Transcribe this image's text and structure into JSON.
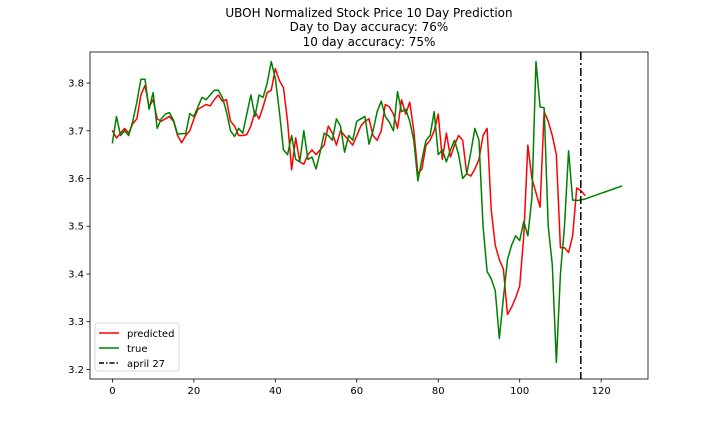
{
  "chart_data": {
    "type": "line",
    "title": [
      "UBOH Normalized Stock Price 10 Day Prediction",
      "Day to Day accuracy: 76%",
      "10 day accuracy: 75%"
    ],
    "xlabel": "",
    "ylabel": "",
    "xlim": [
      -5.5,
      131.5
    ],
    "ylim": [
      3.18,
      3.865
    ],
    "xticks": [
      0,
      20,
      40,
      60,
      80,
      100,
      120
    ],
    "yticks": [
      3.2,
      3.3,
      3.4,
      3.5,
      3.6,
      3.7,
      3.8
    ],
    "ytick_labels": [
      "3.2",
      "3.3",
      "3.4",
      "3.5",
      "3.6",
      "3.7",
      "3.8"
    ],
    "grid": false,
    "legend": "lower-left",
    "vline": {
      "name": "april 27",
      "x": 115,
      "color": "#000000",
      "style": "dashdot"
    },
    "series": [
      {
        "name": "predicted",
        "color": "#ff0000",
        "x": [
          0,
          1,
          2,
          3,
          4,
          5,
          6,
          7,
          8,
          9,
          10,
          11,
          12,
          13,
          14,
          15,
          16,
          17,
          18,
          19,
          20,
          21,
          22,
          23,
          24,
          25,
          26,
          27,
          28,
          29,
          30,
          31,
          32,
          33,
          34,
          35,
          36,
          37,
          38,
          39,
          40,
          41,
          42,
          43,
          44,
          45,
          46,
          47,
          48,
          49,
          50,
          51,
          52,
          53,
          54,
          55,
          56,
          57,
          58,
          59,
          60,
          61,
          62,
          63,
          64,
          65,
          66,
          67,
          68,
          69,
          70,
          71,
          72,
          73,
          74,
          75,
          76,
          77,
          78,
          79,
          80,
          81,
          82,
          83,
          84,
          85,
          86,
          87,
          88,
          89,
          90,
          91,
          92,
          93,
          94,
          95,
          96,
          97,
          98,
          99,
          100,
          101,
          102,
          103,
          104,
          105,
          106,
          107,
          108,
          109,
          110,
          111,
          112,
          113,
          114,
          115,
          116
        ],
        "values": [
          3.7,
          3.685,
          3.695,
          3.705,
          3.695,
          3.715,
          3.725,
          3.775,
          3.795,
          3.75,
          3.765,
          3.725,
          3.72,
          3.725,
          3.73,
          3.72,
          3.69,
          3.675,
          3.69,
          3.7,
          3.725,
          3.745,
          3.75,
          3.755,
          3.752,
          3.765,
          3.775,
          3.762,
          3.765,
          3.72,
          3.71,
          3.69,
          3.69,
          3.692,
          3.71,
          3.74,
          3.725,
          3.75,
          3.78,
          3.785,
          3.83,
          3.805,
          3.79,
          3.72,
          3.618,
          3.685,
          3.635,
          3.63,
          3.65,
          3.66,
          3.65,
          3.66,
          3.67,
          3.71,
          3.695,
          3.67,
          3.7,
          3.69,
          3.68,
          3.67,
          3.69,
          3.71,
          3.72,
          3.725,
          3.69,
          3.68,
          3.7,
          3.755,
          3.75,
          3.735,
          3.705,
          3.765,
          3.735,
          3.76,
          3.7,
          3.61,
          3.62,
          3.67,
          3.68,
          3.7,
          3.735,
          3.64,
          3.695,
          3.645,
          3.67,
          3.69,
          3.68,
          3.61,
          3.605,
          3.62,
          3.64,
          3.69,
          3.705,
          3.535,
          3.46,
          3.43,
          3.41,
          3.315,
          3.33,
          3.35,
          3.375,
          3.48,
          3.67,
          3.6,
          3.57,
          3.54,
          3.74,
          3.72,
          3.69,
          3.65,
          3.455,
          3.455,
          3.445,
          3.48,
          3.58,
          3.575,
          3.565
        ]
      },
      {
        "name": "true",
        "color": "#008000",
        "x": [
          0,
          1,
          2,
          3,
          4,
          5,
          6,
          7,
          8,
          9,
          10,
          11,
          12,
          13,
          14,
          15,
          16,
          17,
          18,
          19,
          20,
          21,
          22,
          23,
          24,
          25,
          26,
          27,
          28,
          29,
          30,
          31,
          32,
          33,
          34,
          35,
          36,
          37,
          38,
          39,
          40,
          41,
          42,
          43,
          44,
          45,
          46,
          47,
          48,
          49,
          50,
          51,
          52,
          53,
          54,
          55,
          56,
          57,
          58,
          59,
          60,
          61,
          62,
          63,
          64,
          65,
          66,
          67,
          68,
          69,
          70,
          71,
          72,
          73,
          74,
          75,
          76,
          77,
          78,
          79,
          80,
          81,
          82,
          83,
          84,
          85,
          86,
          87,
          88,
          89,
          90,
          91,
          92,
          93,
          94,
          95,
          96,
          97,
          98,
          99,
          100,
          101,
          102,
          103,
          104,
          105,
          106,
          107,
          108,
          109,
          110,
          111,
          112,
          113,
          114,
          115,
          116,
          117,
          118,
          119,
          120,
          121,
          122,
          123,
          124,
          125
        ],
        "values": [
          3.675,
          3.73,
          3.69,
          3.7,
          3.69,
          3.72,
          3.76,
          3.808,
          3.808,
          3.745,
          3.78,
          3.705,
          3.725,
          3.735,
          3.738,
          3.722,
          3.693,
          3.694,
          3.694,
          3.736,
          3.73,
          3.75,
          3.77,
          3.765,
          3.775,
          3.785,
          3.785,
          3.77,
          3.74,
          3.7,
          3.688,
          3.705,
          3.695,
          3.735,
          3.775,
          3.73,
          3.775,
          3.77,
          3.8,
          3.845,
          3.81,
          3.74,
          3.66,
          3.65,
          3.69,
          3.64,
          3.635,
          3.7,
          3.64,
          3.645,
          3.62,
          3.655,
          3.695,
          3.69,
          3.68,
          3.725,
          3.71,
          3.655,
          3.69,
          3.68,
          3.72,
          3.725,
          3.73,
          3.672,
          3.7,
          3.74,
          3.762,
          3.73,
          3.718,
          3.7,
          3.782,
          3.74,
          3.745,
          3.72,
          3.68,
          3.595,
          3.64,
          3.68,
          3.69,
          3.74,
          3.65,
          3.66,
          3.635,
          3.66,
          3.68,
          3.65,
          3.6,
          3.61,
          3.655,
          3.705,
          3.68,
          3.5,
          3.405,
          3.39,
          3.365,
          3.265,
          3.35,
          3.43,
          3.46,
          3.48,
          3.47,
          3.51,
          3.48,
          3.56,
          3.845,
          3.75,
          3.748,
          3.5,
          3.42,
          3.215,
          3.4,
          3.5,
          3.658,
          3.555,
          3.554,
          3.555,
          3.557,
          3.56,
          3.563,
          3.566,
          3.569,
          3.572,
          3.575,
          3.578,
          3.581,
          3.584
        ]
      }
    ]
  }
}
